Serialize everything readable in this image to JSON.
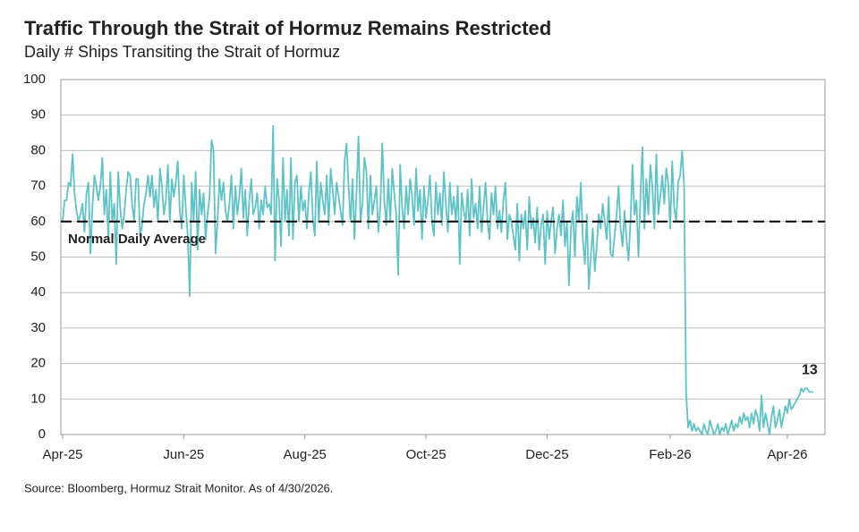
{
  "chart_data": {
    "type": "line",
    "title": "Traffic Through the Strait of Hormuz Remains Restricted",
    "subtitle": "Daily # Ships Transiting the Strait of Hormuz",
    "source": "Source: Bloomberg, Hormuz Strait Monitor. As of 4/30/2026.",
    "categories": [
      "Apr-25",
      null,
      null,
      null,
      null,
      null,
      null,
      null,
      null,
      null,
      null,
      null,
      null,
      null,
      null,
      null,
      null,
      null,
      null,
      null,
      null,
      null,
      null,
      null,
      null,
      null,
      null,
      null,
      null,
      null,
      null,
      null,
      null,
      null,
      null,
      null,
      null,
      null,
      null,
      null,
      null,
      null,
      null,
      null,
      null,
      null,
      null,
      null,
      null,
      null,
      null,
      null,
      null,
      null,
      null,
      null,
      null,
      null,
      null,
      null,
      null,
      "Jun-25",
      null,
      null,
      null,
      null,
      null,
      null,
      null,
      null,
      null,
      null,
      null,
      null,
      null,
      null,
      null,
      null,
      null,
      null,
      null,
      null,
      null,
      null,
      null,
      null,
      null,
      null,
      null,
      null,
      null,
      null,
      null,
      null,
      null,
      null,
      null,
      null,
      null,
      null,
      null,
      null,
      null,
      null,
      null,
      null,
      null,
      null,
      null,
      null,
      null,
      null,
      null,
      null,
      null,
      null,
      null,
      null,
      null,
      null,
      null,
      null,
      "Aug-25",
      null,
      null,
      null,
      null,
      null,
      null,
      null,
      null,
      null,
      null,
      null,
      null,
      null,
      null,
      null,
      null,
      null,
      null,
      null,
      null,
      null,
      null,
      null,
      null,
      null,
      null,
      null,
      null,
      null,
      null,
      null,
      null,
      null,
      null,
      null,
      null,
      null,
      null,
      null,
      null,
      null,
      null,
      null,
      null,
      null,
      null,
      null,
      null,
      null,
      null,
      null,
      null,
      null,
      null,
      null,
      null,
      null,
      null,
      null,
      null,
      "Oct-25",
      null,
      null,
      null,
      null,
      null,
      null,
      null,
      null,
      null,
      null,
      null,
      null,
      null,
      null,
      null,
      null,
      null,
      null,
      null,
      null,
      null,
      null,
      null,
      null,
      null,
      null,
      null,
      null,
      null,
      null,
      null,
      null,
      null,
      null,
      null,
      null,
      null,
      null,
      null,
      null,
      null,
      null,
      null,
      null,
      null,
      null,
      null,
      null,
      null,
      null,
      null,
      null,
      null,
      null,
      null,
      null,
      null,
      null,
      null,
      null,
      "Dec-25",
      null,
      null,
      null,
      null,
      null,
      null,
      null,
      null,
      null,
      null,
      null,
      null,
      null,
      null,
      null,
      null,
      null,
      null,
      null,
      null,
      null,
      null,
      null,
      null,
      null,
      null,
      null,
      null,
      null,
      null,
      null,
      null,
      null,
      null,
      null,
      null,
      null,
      null,
      null,
      null,
      null,
      null,
      null,
      null,
      null,
      null,
      null,
      null,
      null,
      null,
      null,
      null,
      null,
      null,
      null,
      null,
      null,
      null,
      null,
      null,
      null,
      "Feb-26",
      null,
      null,
      null,
      null,
      null,
      null,
      null,
      null,
      null,
      null,
      null,
      null,
      null,
      null,
      null,
      null,
      null,
      null,
      null,
      null,
      null,
      null,
      null,
      null,
      null,
      null,
      null,
      null,
      null,
      null,
      null,
      null,
      null,
      null,
      null,
      null,
      null,
      null,
      null,
      null,
      null,
      null,
      null,
      null,
      null,
      null,
      null,
      null,
      null,
      null,
      null,
      null,
      null,
      null,
      null,
      null,
      null,
      null,
      "Apr-26",
      null,
      null,
      null,
      null,
      null,
      null,
      null,
      null,
      null,
      null,
      null,
      null,
      null
    ],
    "series": [
      {
        "color": "#5ec3c8",
        "values": [
          60,
          66,
          66,
          71,
          70,
          79,
          68,
          63,
          60,
          62,
          65,
          57,
          68,
          71,
          51,
          64,
          73,
          70,
          66,
          70,
          78,
          62,
          69,
          55,
          74,
          60,
          65,
          48,
          74,
          64,
          58,
          62,
          69,
          74,
          73,
          65,
          60,
          72,
          72,
          56,
          59,
          65,
          68,
          73,
          67,
          73,
          64,
          69,
          60,
          75,
          70,
          62,
          66,
          76,
          60,
          72,
          67,
          71,
          77,
          63,
          58,
          73,
          64,
          56,
          39,
          71,
          60,
          74,
          52,
          69,
          62,
          68,
          55,
          62,
          67,
          83,
          80,
          51,
          60,
          72,
          66,
          71,
          63,
          60,
          65,
          73,
          58,
          70,
          62,
          67,
          75,
          61,
          69,
          56,
          66,
          72,
          62,
          64,
          68,
          58,
          66,
          62,
          70,
          64,
          65,
          62,
          87,
          49,
          72,
          66,
          53,
          78,
          60,
          69,
          56,
          78,
          55,
          71,
          73,
          60,
          70,
          63,
          66,
          58,
          68,
          74,
          61,
          56,
          77,
          60,
          71,
          66,
          62,
          73,
          59,
          75,
          69,
          62,
          71,
          67,
          63,
          59,
          77,
          82,
          70,
          60,
          72,
          55,
          68,
          84,
          60,
          65,
          78,
          74,
          58,
          73,
          62,
          66,
          70,
          57,
          64,
          82,
          66,
          59,
          72,
          60,
          75,
          68,
          62,
          45,
          76,
          64,
          58,
          70,
          62,
          72,
          67,
          59,
          75,
          63,
          69,
          55,
          70,
          61,
          66,
          73,
          60,
          56,
          71,
          62,
          68,
          59,
          74,
          65,
          57,
          71,
          62,
          67,
          60,
          70,
          48,
          68,
          63,
          60,
          69,
          56,
          72,
          61,
          65,
          58,
          70,
          57,
          64,
          71,
          60,
          55,
          68,
          62,
          70,
          58,
          63,
          57,
          66,
          71,
          55,
          62,
          60,
          56,
          52,
          65,
          49,
          62,
          58,
          63,
          52,
          67,
          58,
          61,
          54,
          64,
          52,
          59,
          62,
          48,
          63,
          55,
          60,
          64,
          51,
          58,
          62,
          56,
          66,
          53,
          60,
          42,
          58,
          63,
          50,
          67,
          60,
          71,
          55,
          48,
          62,
          41,
          50,
          58,
          46,
          53,
          62,
          58,
          65,
          60,
          55,
          67,
          51,
          50,
          56,
          62,
          70,
          58,
          53,
          63,
          55,
          49,
          60,
          76,
          62,
          66,
          50,
          67,
          81,
          58,
          72,
          62,
          76,
          70,
          58,
          79,
          62,
          67,
          73,
          65,
          75,
          71,
          58,
          77,
          64,
          60,
          71,
          73,
          80,
          70,
          12,
          2,
          4,
          1,
          3,
          1,
          2,
          1,
          0,
          3,
          1,
          0,
          4,
          2,
          0,
          1,
          3,
          0,
          2,
          1,
          3,
          0,
          2,
          4,
          1,
          3,
          2,
          5,
          3,
          6,
          4,
          5,
          2,
          6,
          3,
          7,
          5,
          1,
          11,
          2,
          6,
          3,
          0,
          5,
          8,
          2,
          4,
          7,
          2,
          5,
          8,
          6,
          10,
          7,
          8,
          9,
          10,
          11,
          13,
          12,
          13,
          13,
          12,
          12,
          12
        ]
      }
    ],
    "reference_line": {
      "value": 60,
      "label": "Normal Daily Average",
      "color": "#000000"
    },
    "ylim": [
      0,
      100
    ],
    "yticks": [
      0,
      10,
      20,
      30,
      40,
      50,
      60,
      70,
      80,
      90,
      100
    ],
    "grid": true
  }
}
